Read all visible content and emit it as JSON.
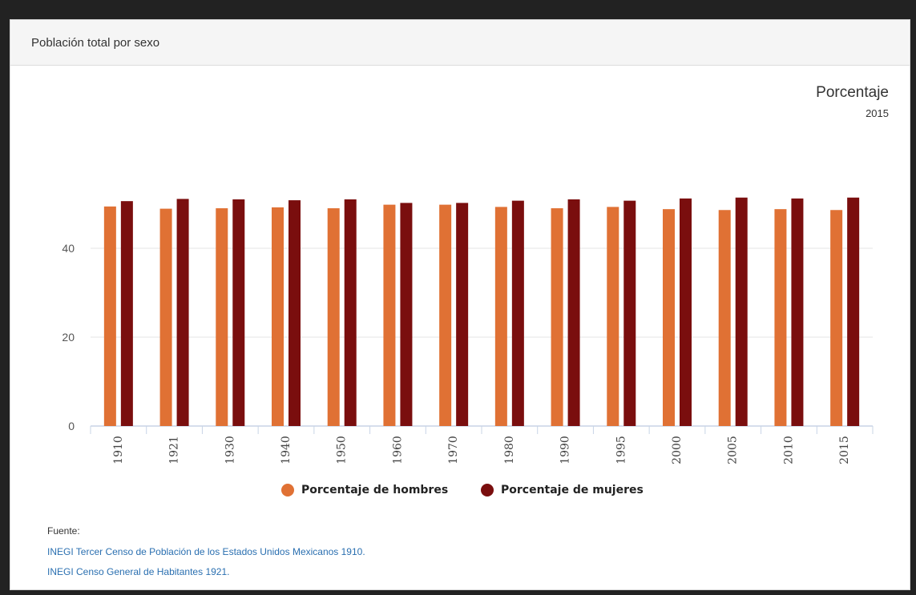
{
  "panel": {
    "title": "Población total por sexo"
  },
  "chart_data": {
    "type": "bar",
    "title": "Porcentaje",
    "subtitle": "2015",
    "categories": [
      "1910",
      "1921",
      "1930",
      "1940",
      "1950",
      "1960",
      "1970",
      "1980",
      "1990",
      "1995",
      "2000",
      "2005",
      "2010",
      "2015"
    ],
    "series": [
      {
        "name": "Porcentaje de hombres",
        "color": "#e07134",
        "values": [
          49.4,
          48.9,
          49.0,
          49.2,
          49.0,
          49.8,
          49.8,
          49.3,
          49.0,
          49.3,
          48.8,
          48.6,
          48.8,
          48.6
        ]
      },
      {
        "name": "Porcentaje de mujeres",
        "color": "#7a0e0e",
        "values": [
          50.6,
          51.1,
          51.0,
          50.8,
          51.0,
          50.2,
          50.2,
          50.7,
          51.0,
          50.7,
          51.2,
          51.4,
          51.2,
          51.4
        ]
      }
    ],
    "y_ticks": [
      "0",
      "20",
      "40"
    ],
    "ylim": [
      0,
      60
    ],
    "grid": true,
    "legend_position": "bottom"
  },
  "source": {
    "label": "Fuente:",
    "links": [
      "INEGI Tercer Censo de Población de los Estados Unidos Mexicanos 1910.",
      "INEGI Censo General de Habitantes 1921."
    ]
  }
}
